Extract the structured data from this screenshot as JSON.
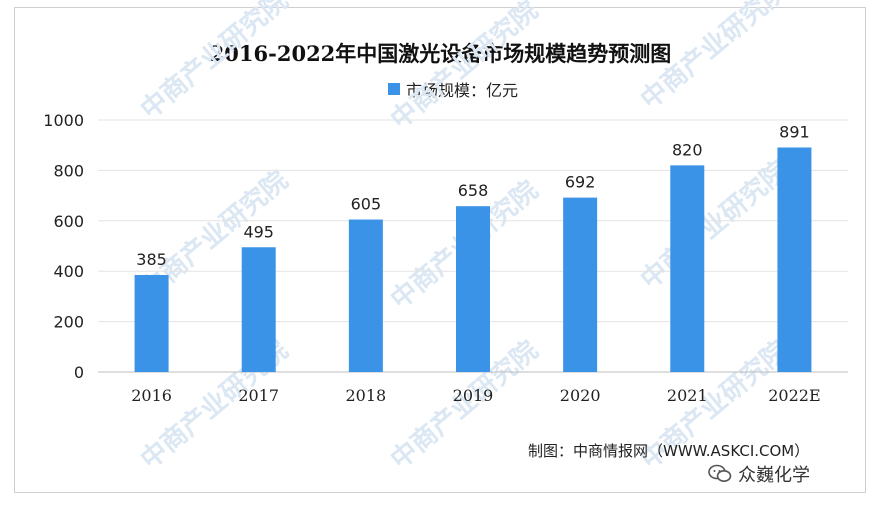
{
  "chart_data": {
    "type": "bar",
    "title": "2016-2022年中国激光设备市场规模趋势预测图",
    "legend": "市场规模：亿元",
    "categories": [
      "2016",
      "2017",
      "2018",
      "2019",
      "2020",
      "2021",
      "2022E"
    ],
    "series": [
      {
        "name": "市场规模：亿元",
        "values": [
          385,
          495,
          605,
          658,
          692,
          820,
          891
        ]
      }
    ],
    "ylim": [
      0,
      1000
    ],
    "yticks": [
      0,
      200,
      400,
      600,
      800,
      1000
    ],
    "grid": true,
    "legend_position": "top-center",
    "bar_color": "#3a93e6"
  },
  "footer": {
    "source": "制图：中商情报网（WWW.ASKCI.COM）",
    "brand": "众巍化学"
  },
  "watermark": {
    "text": "中商产业研究院"
  }
}
